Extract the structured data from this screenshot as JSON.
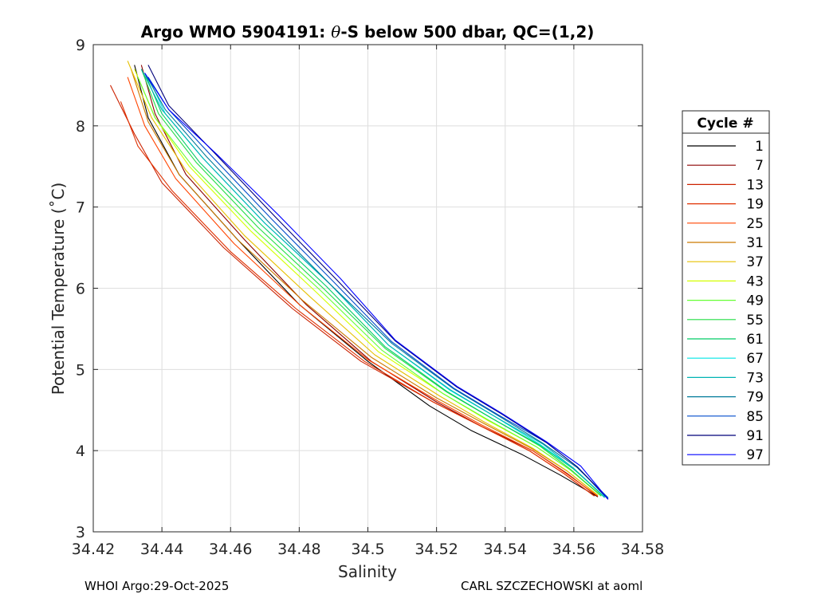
{
  "chart_data": {
    "type": "line",
    "title_prefix": "Argo WMO 5904191: ",
    "title_theta": "θ",
    "title_suffix": "-S below 500 dbar,  QC=(1,2)",
    "xlabel": "Salinity",
    "ylabel": "Potential Temperature (˚C)",
    "xlim": [
      34.42,
      34.58
    ],
    "ylim": [
      3,
      9
    ],
    "xticks": [
      34.42,
      34.44,
      34.46,
      34.48,
      34.5,
      34.52,
      34.54,
      34.56,
      34.58
    ],
    "xtick_labels": [
      "34.42",
      "34.44",
      "34.46",
      "34.48",
      "34.5",
      "34.52",
      "34.54",
      "34.56",
      "34.58"
    ],
    "yticks": [
      3,
      4,
      5,
      6,
      7,
      8,
      9
    ],
    "ytick_labels": [
      "3",
      "4",
      "5",
      "6",
      "7",
      "8",
      "9"
    ],
    "grid": true,
    "legend_title": "Cycle #",
    "legend_position": "right-outside",
    "series": [
      {
        "name": "1",
        "color": "#000000",
        "s": [
          34.432,
          34.436,
          34.445,
          34.462,
          34.48,
          34.5,
          34.518,
          34.53,
          34.545,
          34.556,
          34.567
        ],
        "t": [
          8.75,
          8.1,
          7.4,
          6.6,
          5.8,
          5.1,
          4.55,
          4.25,
          3.95,
          3.7,
          3.43
        ]
      },
      {
        "name": "7",
        "color": "#8b0000",
        "s": [
          34.434,
          34.438,
          34.447,
          34.464,
          34.482,
          34.501,
          34.52,
          34.533,
          34.548,
          34.558,
          34.567
        ],
        "t": [
          8.75,
          8.15,
          7.4,
          6.6,
          5.8,
          5.1,
          4.6,
          4.3,
          4.0,
          3.72,
          3.43
        ]
      },
      {
        "name": "13",
        "color": "#cc2200",
        "s": [
          34.425,
          34.432,
          34.44,
          34.458,
          34.478,
          34.498,
          34.519,
          34.533,
          34.547,
          34.557,
          34.566
        ],
        "t": [
          8.5,
          7.9,
          7.3,
          6.5,
          5.75,
          5.1,
          4.6,
          4.3,
          4.0,
          3.72,
          3.44
        ]
      },
      {
        "name": "19",
        "color": "#e03000",
        "s": [
          34.428,
          34.433,
          34.443,
          34.46,
          34.479,
          34.499,
          34.519,
          34.533,
          34.547,
          34.557,
          34.566
        ],
        "t": [
          8.3,
          7.75,
          7.2,
          6.45,
          5.75,
          5.1,
          4.6,
          4.3,
          4.0,
          3.72,
          3.44
        ]
      },
      {
        "name": "25",
        "color": "#ff4500",
        "s": [
          34.43,
          34.435,
          34.444,
          34.461,
          34.48,
          34.5,
          34.52,
          34.533,
          34.548,
          34.557,
          34.567
        ],
        "t": [
          8.6,
          8.0,
          7.35,
          6.55,
          5.8,
          5.12,
          4.62,
          4.32,
          4.0,
          3.74,
          3.44
        ]
      },
      {
        "name": "31",
        "color": "#cc7a00",
        "s": [
          34.431,
          34.436,
          34.445,
          34.462,
          34.481,
          34.501,
          34.52,
          34.534,
          34.548,
          34.558,
          34.567
        ],
        "t": [
          8.7,
          8.05,
          7.4,
          6.6,
          5.85,
          5.15,
          4.65,
          4.33,
          4.02,
          3.75,
          3.45
        ]
      },
      {
        "name": "37",
        "color": "#e6c000",
        "s": [
          34.43,
          34.437,
          34.447,
          34.464,
          34.483,
          34.502,
          34.521,
          34.534,
          34.548,
          34.558,
          34.567
        ],
        "t": [
          8.8,
          8.1,
          7.45,
          6.65,
          5.9,
          5.18,
          4.67,
          4.35,
          4.03,
          3.75,
          3.45
        ]
      },
      {
        "name": "43",
        "color": "#d4ff00",
        "s": [
          34.432,
          34.438,
          34.448,
          34.466,
          34.485,
          34.503,
          34.522,
          34.535,
          34.549,
          34.559,
          34.568
        ],
        "t": [
          8.7,
          8.1,
          7.5,
          6.7,
          5.95,
          5.22,
          4.7,
          4.37,
          4.05,
          3.76,
          3.45
        ]
      },
      {
        "name": "49",
        "color": "#66ff33",
        "s": [
          34.433,
          34.438,
          34.449,
          34.467,
          34.486,
          34.504,
          34.522,
          34.535,
          34.549,
          34.559,
          34.568
        ],
        "t": [
          8.6,
          8.1,
          7.5,
          6.72,
          5.98,
          5.24,
          4.7,
          4.38,
          4.05,
          3.76,
          3.44
        ]
      },
      {
        "name": "55",
        "color": "#22dd44",
        "s": [
          34.434,
          34.439,
          34.45,
          34.468,
          34.487,
          34.505,
          34.523,
          34.536,
          34.55,
          34.559,
          34.568
        ],
        "t": [
          8.7,
          8.15,
          7.55,
          6.75,
          6.0,
          5.26,
          4.72,
          4.4,
          4.06,
          3.77,
          3.44
        ]
      },
      {
        "name": "61",
        "color": "#00cc66",
        "s": [
          34.435,
          34.44,
          34.451,
          34.469,
          34.488,
          34.505,
          34.523,
          34.536,
          34.55,
          34.56,
          34.569
        ],
        "t": [
          8.65,
          8.15,
          7.55,
          6.78,
          6.02,
          5.28,
          4.73,
          4.4,
          4.07,
          3.77,
          3.43
        ]
      },
      {
        "name": "67",
        "color": "#00e5e5",
        "s": [
          34.436,
          34.441,
          34.452,
          34.47,
          34.489,
          34.506,
          34.524,
          34.537,
          34.55,
          34.56,
          34.569
        ],
        "t": [
          8.6,
          8.15,
          7.6,
          6.8,
          6.05,
          5.3,
          4.74,
          4.42,
          4.08,
          3.78,
          3.43
        ]
      },
      {
        "name": "73",
        "color": "#00b3b3",
        "s": [
          34.434,
          34.44,
          34.452,
          34.47,
          34.489,
          34.506,
          34.524,
          34.537,
          34.551,
          34.56,
          34.569
        ],
        "t": [
          8.7,
          8.2,
          7.6,
          6.8,
          6.05,
          5.3,
          4.75,
          4.42,
          4.08,
          3.78,
          3.42
        ]
      },
      {
        "name": "79",
        "color": "#007a99",
        "s": [
          34.435,
          34.441,
          34.453,
          34.471,
          34.489,
          34.507,
          34.525,
          34.538,
          34.551,
          34.561,
          34.57
        ],
        "t": [
          8.65,
          8.2,
          7.62,
          6.82,
          6.05,
          5.32,
          4.76,
          4.43,
          4.09,
          3.79,
          3.42
        ]
      },
      {
        "name": "85",
        "color": "#004ccc",
        "s": [
          34.436,
          34.442,
          34.454,
          34.472,
          34.49,
          34.507,
          34.525,
          34.538,
          34.552,
          34.561,
          34.57
        ],
        "t": [
          8.6,
          8.2,
          7.65,
          6.85,
          6.08,
          5.34,
          4.77,
          4.44,
          4.1,
          3.8,
          3.41
        ]
      },
      {
        "name": "91",
        "color": "#00007a",
        "s": [
          34.436,
          34.442,
          34.455,
          34.473,
          34.491,
          34.508,
          34.526,
          34.539,
          34.552,
          34.561,
          34.57
        ],
        "t": [
          8.75,
          8.25,
          7.68,
          6.88,
          6.1,
          5.35,
          4.78,
          4.45,
          4.1,
          3.8,
          3.4
        ]
      },
      {
        "name": "97",
        "color": "#0000ff",
        "s": [
          34.435,
          34.442,
          34.456,
          34.474,
          34.492,
          34.508,
          34.526,
          34.539,
          34.552,
          34.562,
          34.57
        ],
        "t": [
          8.65,
          8.2,
          7.65,
          6.9,
          6.12,
          5.36,
          4.79,
          4.46,
          4.11,
          3.81,
          3.4
        ]
      }
    ]
  },
  "footer": {
    "left": "WHOI Argo:29-Oct-2025",
    "right": "CARL SZCZECHOWSKI at aoml"
  }
}
